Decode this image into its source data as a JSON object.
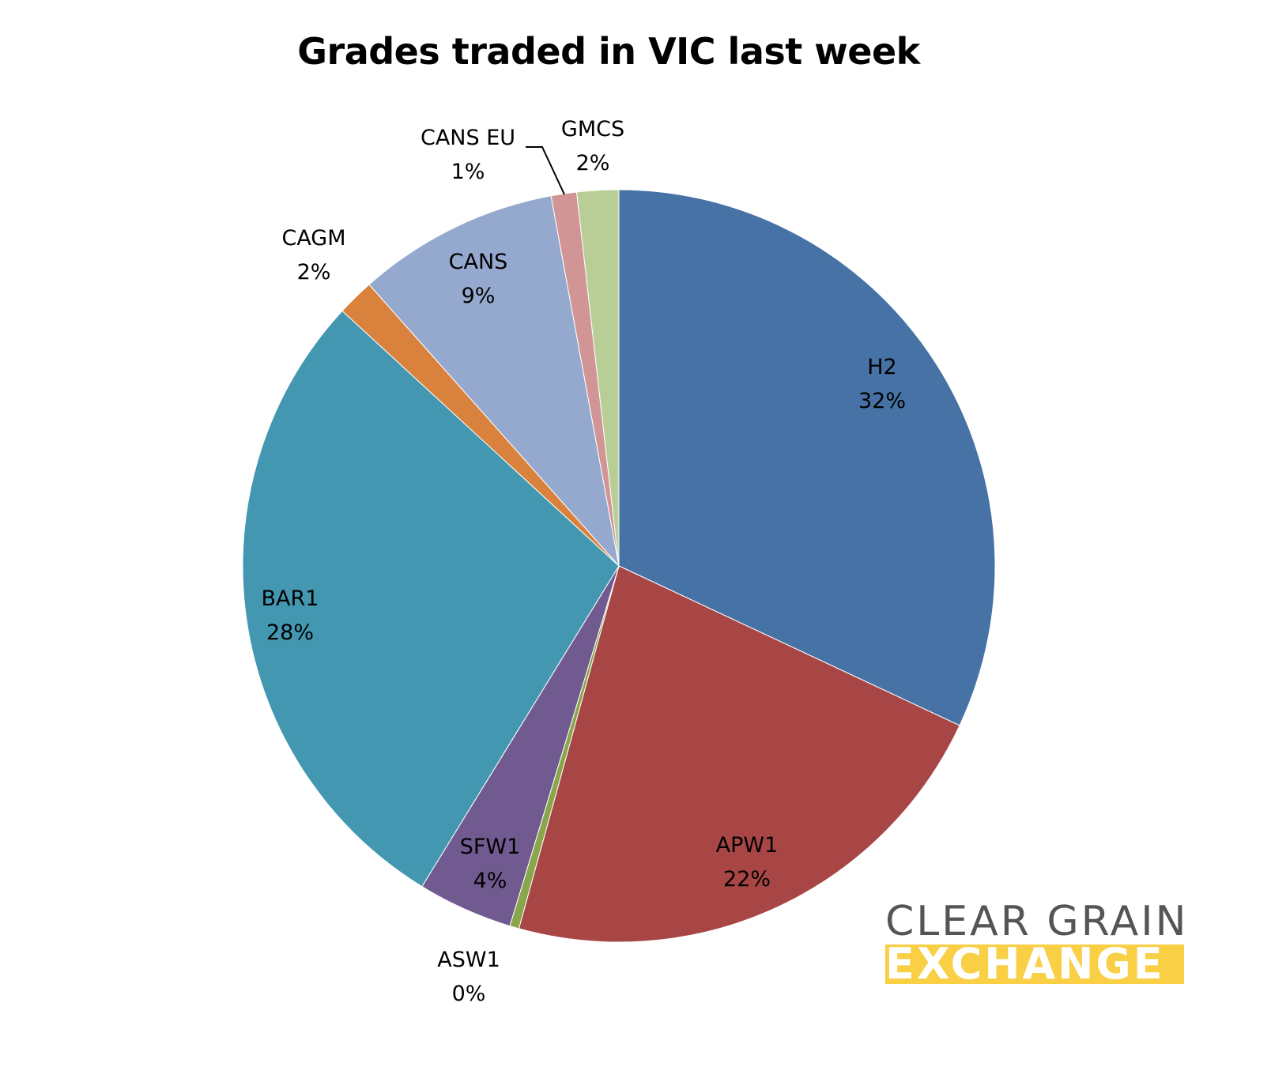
{
  "chart_data": {
    "type": "pie",
    "title": "Grades traded in VIC last week",
    "categories": [
      "H2",
      "APW1",
      "ASW1",
      "SFW1",
      "BAR1",
      "CAGM",
      "CANS",
      "CANS EU",
      "GMCS"
    ],
    "values": [
      32.1,
      22.4,
      0.4,
      4.1,
      28.2,
      1.6,
      8.7,
      1.1,
      1.8
    ],
    "labels": [
      "32%",
      "22%",
      "0%",
      "4%",
      "28%",
      "2%",
      "9%",
      "1%",
      "2%"
    ],
    "colors": [
      "#4672a5",
      "#a84646",
      "#8aa64b",
      "#715a90",
      "#4397b0",
      "#d9823e",
      "#95a9cf",
      "#d19595",
      "#b8ce96"
    ],
    "start_angle_deg": 0,
    "direction": "clockwise",
    "legend": "none (data labels)"
  },
  "labels": {
    "h2": {
      "name": "H2",
      "pct": "32%"
    },
    "apw1": {
      "name": "APW1",
      "pct": "22%"
    },
    "asw1": {
      "name": "ASW1",
      "pct": "0%"
    },
    "sfw1": {
      "name": "SFW1",
      "pct": "4%"
    },
    "bar1": {
      "name": "BAR1",
      "pct": "28%"
    },
    "cagm": {
      "name": "CAGM",
      "pct": "2%"
    },
    "cans": {
      "name": "CANS",
      "pct": "9%"
    },
    "canseu": {
      "name": "CANS EU",
      "pct": "1%"
    },
    "gmcs": {
      "name": "GMCS",
      "pct": "2%"
    }
  },
  "logo": {
    "line1": "CLEAR GRAIN",
    "line2": "EXCHANGE"
  }
}
